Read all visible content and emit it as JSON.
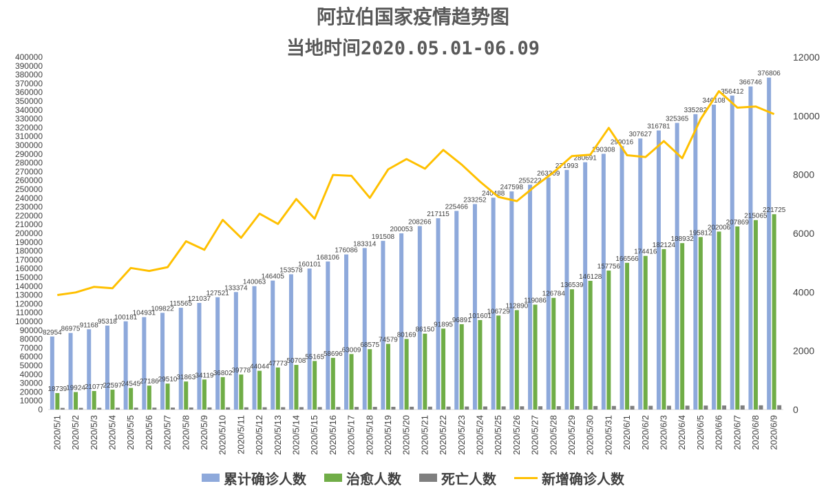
{
  "title": "阿拉伯国家疫情趋势图",
  "subtitle": "当地时间2020.05.01-06.09",
  "colors": {
    "cumulative": "#8EA9DB",
    "recovered": "#70AD47",
    "deaths": "#7F7F7F",
    "new_cases": "#FFC000"
  },
  "chart_data": {
    "type": "bar",
    "categories": [
      "2020/5/1",
      "2020/5/2",
      "2020/5/3",
      "2020/5/4",
      "2020/5/5",
      "2020/5/6",
      "2020/5/7",
      "2020/5/8",
      "2020/5/9",
      "2020/5/10",
      "2020/5/11",
      "2020/5/12",
      "2020/5/13",
      "2020/5/14",
      "2020/5/15",
      "2020/5/16",
      "2020/5/17",
      "2020/5/18",
      "2020/5/19",
      "2020/5/20",
      "2020/5/21",
      "2020/5/22",
      "2020/5/23",
      "2020/5/24",
      "2020/5/25",
      "2020/5/26",
      "2020/5/27",
      "2020/5/28",
      "2020/5/29",
      "2020/5/30",
      "2020/5/31",
      "2020/6/1",
      "2020/6/2",
      "2020/6/3",
      "2020/6/4",
      "2020/6/5",
      "2020/6/6",
      "2020/6/7",
      "2020/6/8",
      "2020/6/9"
    ],
    "series": [
      {
        "name": "累计确诊人数",
        "type": "bar",
        "axis": "left",
        "values": [
          82954,
          86975,
          91168,
          95318,
          100181,
          104931,
          109822,
          115565,
          121037,
          127521,
          133374,
          140063,
          146405,
          153578,
          160101,
          168106,
          176086,
          183314,
          191508,
          200053,
          208266,
          217115,
          225466,
          233252,
          240488,
          247598,
          255222,
          263309,
          271993,
          280691,
          290308,
          299016,
          307627,
          316781,
          325365,
          335282,
          346108,
          356412,
          366746,
          376806
        ],
        "labels": [
          "82954",
          "86975",
          "91168",
          "95318",
          "100181",
          "104931",
          "109822",
          "115565",
          "121037",
          "127521",
          "133374",
          "140063",
          "146405",
          "153578",
          "160101",
          "168106",
          "176086",
          "183314",
          "191508",
          "200053",
          "208266",
          "217115",
          "225466",
          "233252",
          "240488",
          "247598",
          "255222",
          "263309",
          "271993",
          "280691",
          "290308",
          "299016",
          "307627",
          "316781",
          "325365",
          "335282",
          "346108",
          "356412",
          "366746",
          "376806"
        ]
      },
      {
        "name": "治愈人数",
        "type": "bar",
        "axis": "left",
        "values": [
          18739,
          19924,
          21077,
          22597,
          24545,
          27186,
          29510,
          31863,
          34119,
          36802,
          39778,
          44044,
          47773,
          50708,
          55165,
          58696,
          63009,
          68575,
          74579,
          80169,
          86150,
          91895,
          96891,
          101601,
          106729,
          112890,
          119086,
          126784,
          136539,
          146128,
          157756,
          166566,
          174416,
          182124,
          188932,
          195812,
          202006,
          207869,
          215065,
          221725
        ],
        "labels": [
          "18739",
          "19924",
          "21077",
          "22597",
          "24545",
          "27186",
          "29510",
          "31863",
          "34119",
          "36802",
          "39778",
          "44044",
          "47773",
          "50708",
          "55165",
          "58696",
          "63009",
          "68575",
          "74579",
          "80169",
          "86150",
          "91895",
          "96891",
          "101601",
          "106729",
          "112890",
          "119086",
          "126784",
          "136539",
          "146128",
          "157756",
          "166566",
          "174416",
          "182124",
          "188932",
          "195812",
          "202006",
          "207869",
          "215065",
          "221725"
        ]
      },
      {
        "name": "死亡人数",
        "type": "bar",
        "axis": "left",
        "values": [
          1900,
          1960,
          2020,
          2090,
          2150,
          2220,
          2290,
          2360,
          2430,
          2500,
          2560,
          2630,
          2700,
          2770,
          2840,
          2920,
          3000,
          3070,
          3140,
          3220,
          3300,
          3390,
          3470,
          3540,
          3620,
          3700,
          3780,
          3860,
          3940,
          4020,
          4110,
          4200,
          4290,
          4380,
          4470,
          4560,
          4650,
          4750,
          4840,
          4930
        ]
      },
      {
        "name": "新增确诊人数",
        "type": "line",
        "axis": "right",
        "values": [
          3900,
          3990,
          4180,
          4130,
          4820,
          4720,
          4850,
          5730,
          5440,
          6460,
          5850,
          6670,
          6320,
          7170,
          6500,
          7990,
          7960,
          7210,
          8180,
          8530,
          8200,
          8840,
          8340,
          7760,
          7240,
          7100,
          7610,
          8080,
          8630,
          8680,
          9590,
          8660,
          8600,
          9140,
          8560,
          9890,
          10840,
          10280,
          10320,
          10060
        ]
      }
    ],
    "y_left": {
      "min": 0,
      "max": 400000,
      "step": 10000,
      "ticks": [
        "0",
        "10000",
        "20000",
        "30000",
        "40000",
        "50000",
        "60000",
        "70000",
        "80000",
        "90000",
        "100000",
        "110000",
        "120000",
        "130000",
        "140000",
        "150000",
        "160000",
        "170000",
        "180000",
        "190000",
        "200000",
        "210000",
        "220000",
        "230000",
        "240000",
        "250000",
        "260000",
        "270000",
        "280000",
        "290000",
        "300000",
        "310000",
        "320000",
        "330000",
        "340000",
        "350000",
        "360000",
        "370000",
        "380000",
        "390000",
        "400000"
      ]
    },
    "y_right": {
      "min": 0,
      "max": 12000,
      "step": 2000,
      "ticks": [
        "0",
        "2000",
        "4000",
        "6000",
        "8000",
        "10000",
        "12000"
      ]
    },
    "grid": false,
    "legend": "bottom"
  }
}
